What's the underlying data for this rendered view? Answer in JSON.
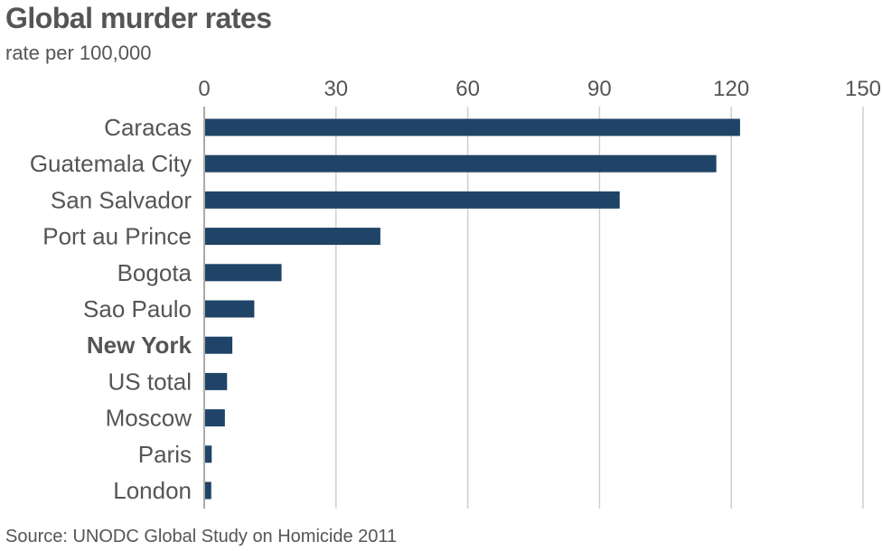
{
  "title": "Global murder rates",
  "subtitle": "rate per 100,000",
  "source": "Source: UNODC Global Study on Homicide 2011",
  "colors": {
    "bar": "#1f4467",
    "grid": "#cfcfcf",
    "axis": "#aaaaaa",
    "text": "#555555"
  },
  "chart_data": {
    "type": "bar",
    "orientation": "horizontal",
    "title": "Global murder rates",
    "subtitle": "rate per 100,000",
    "xlim": [
      0,
      150
    ],
    "xticks": [
      0,
      30,
      60,
      90,
      120,
      150
    ],
    "xtick_labels": [
      "0",
      "30",
      "60",
      "90",
      "120",
      "150"
    ],
    "grid": true,
    "categories": [
      "Caracas",
      "Guatemala City",
      "San Salvador",
      "Port au Prince",
      "Bogota",
      "Sao Paulo",
      "New York",
      "US total",
      "Moscow",
      "Paris",
      "London"
    ],
    "values": [
      122,
      116.6,
      94.6,
      40.1,
      17.6,
      11.4,
      6.4,
      5.2,
      4.7,
      1.7,
      1.6
    ],
    "highlight": [
      "New York"
    ]
  }
}
